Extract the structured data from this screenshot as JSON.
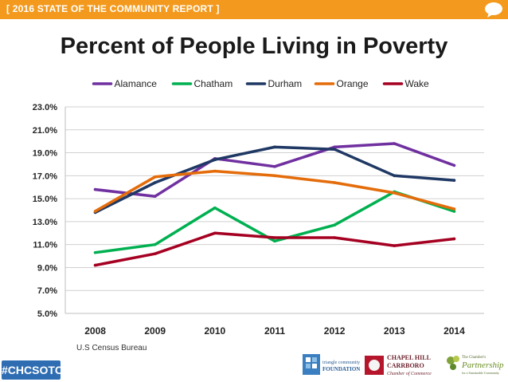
{
  "header": {
    "banner": "[ 2016 STATE OF THE COMMUNITY REPORT ]",
    "icon": "speech-bubble-icon",
    "accent_color": "#f39a1e"
  },
  "chart_data": {
    "type": "line",
    "title": "Percent of People Living in Poverty",
    "categories": [
      "2008",
      "2009",
      "2010",
      "2011",
      "2012",
      "2013",
      "2014"
    ],
    "y_ticks": [
      "5.0%",
      "7.0%",
      "9.0%",
      "11.0%",
      "13.0%",
      "15.0%",
      "17.0%",
      "19.0%",
      "21.0%",
      "23.0%"
    ],
    "ylim": [
      5.0,
      23.0
    ],
    "xlabel": "",
    "ylabel": "",
    "grid": true,
    "legend_position": "top",
    "series": [
      {
        "name": "Alamance",
        "color": "#7030a0",
        "values": [
          15.8,
          15.2,
          18.5,
          17.8,
          19.5,
          19.8,
          17.9
        ]
      },
      {
        "name": "Chatham",
        "color": "#00b050",
        "values": [
          10.3,
          11.0,
          14.2,
          11.3,
          12.7,
          15.6,
          13.9
        ]
      },
      {
        "name": "Durham",
        "color": "#1f3864",
        "values": [
          13.8,
          16.4,
          18.4,
          19.5,
          19.3,
          17.0,
          16.6
        ]
      },
      {
        "name": "Orange",
        "color": "#e46c0a",
        "values": [
          13.9,
          16.9,
          17.4,
          17.0,
          16.4,
          15.5,
          14.1
        ]
      },
      {
        "name": "Wake",
        "color": "#a50021",
        "values": [
          9.2,
          10.2,
          12.0,
          11.6,
          11.6,
          10.9,
          11.5
        ]
      }
    ]
  },
  "footer": {
    "source": "U.S Census Bureau",
    "hashtag": "#CHCSOTC",
    "hashtag_color": "#2f6db3",
    "logos": [
      {
        "name": "triangle-community-foundation-logo",
        "lines": [
          "triangle community",
          "FOUNDATION"
        ]
      },
      {
        "name": "chapel-hill-carrboro-chamber-logo",
        "lines": [
          "CHAPEL HILL",
          "CARRBORO",
          "Chamber of Commerce"
        ]
      },
      {
        "name": "chambers-partnership-logo",
        "lines": [
          "The Chamber's",
          "Partnership",
          "for a Sustainable Community"
        ]
      }
    ]
  }
}
